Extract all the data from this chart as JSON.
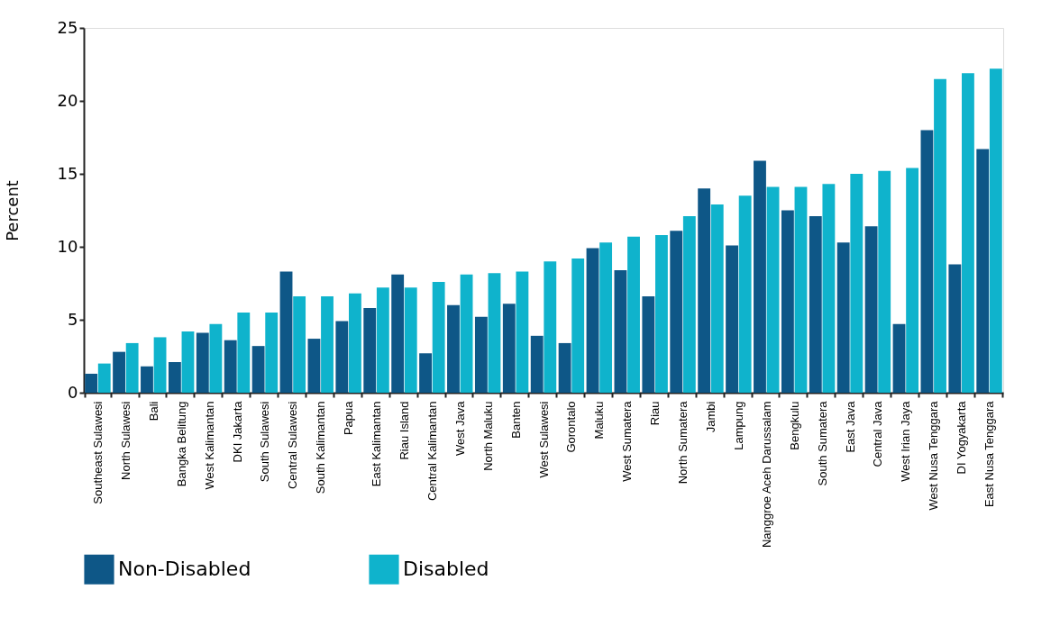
{
  "chart_data": {
    "type": "bar",
    "ylabel": "Percent",
    "categories": [
      "Southeast Sulawesi",
      "North Sulawesi",
      "Bali",
      "Bangka Belitung",
      "West Kalimantan",
      "DKI Jakarta",
      "South Sulawesi",
      "Central Sulawesi",
      "South Kalimantan",
      "Papua",
      "East Kalimantan",
      "Riau Island",
      "Central Kalimantan",
      "West Java",
      "North Maluku",
      "Banten",
      "West Sulawesi",
      "Gorontalo",
      "Maluku",
      "West Sumatera",
      "Riau",
      "North Sumatera",
      "Jambi",
      "Lampung",
      "Nanggroe Aceh Darussalam",
      "Bengkulu",
      "South Sumatera",
      "East Java",
      "Central Java",
      "West Irian Jaya",
      "West Nusa Tenggara",
      "DI Yogyakarta",
      "East Nusa Tenggara"
    ],
    "series": [
      {
        "name": "Non-Disabled",
        "color": "#0e5787",
        "values": [
          1.3,
          2.8,
          1.8,
          2.1,
          4.1,
          3.6,
          3.2,
          8.3,
          3.7,
          4.9,
          5.8,
          8.1,
          2.7,
          6.0,
          5.2,
          6.1,
          3.9,
          3.4,
          9.9,
          8.4,
          6.6,
          11.1,
          14.0,
          10.1,
          15.9,
          12.5,
          12.1,
          10.3,
          11.4,
          4.7,
          18.0,
          8.8,
          16.7
        ]
      },
      {
        "name": "Disabled",
        "color": "#0fb3cc",
        "values": [
          2.0,
          3.4,
          3.8,
          4.2,
          4.7,
          5.5,
          5.5,
          6.6,
          6.6,
          6.8,
          7.2,
          7.2,
          7.6,
          8.1,
          8.2,
          8.3,
          9.0,
          9.2,
          10.3,
          10.7,
          10.8,
          12.1,
          12.9,
          13.5,
          14.1,
          14.1,
          14.3,
          15.0,
          15.2,
          15.4,
          21.5,
          21.9,
          22.2
        ]
      }
    ],
    "ylim": [
      0,
      25
    ],
    "yticks": [
      0,
      5,
      10,
      15,
      20,
      25
    ],
    "grid": false,
    "legend": "bottom"
  }
}
